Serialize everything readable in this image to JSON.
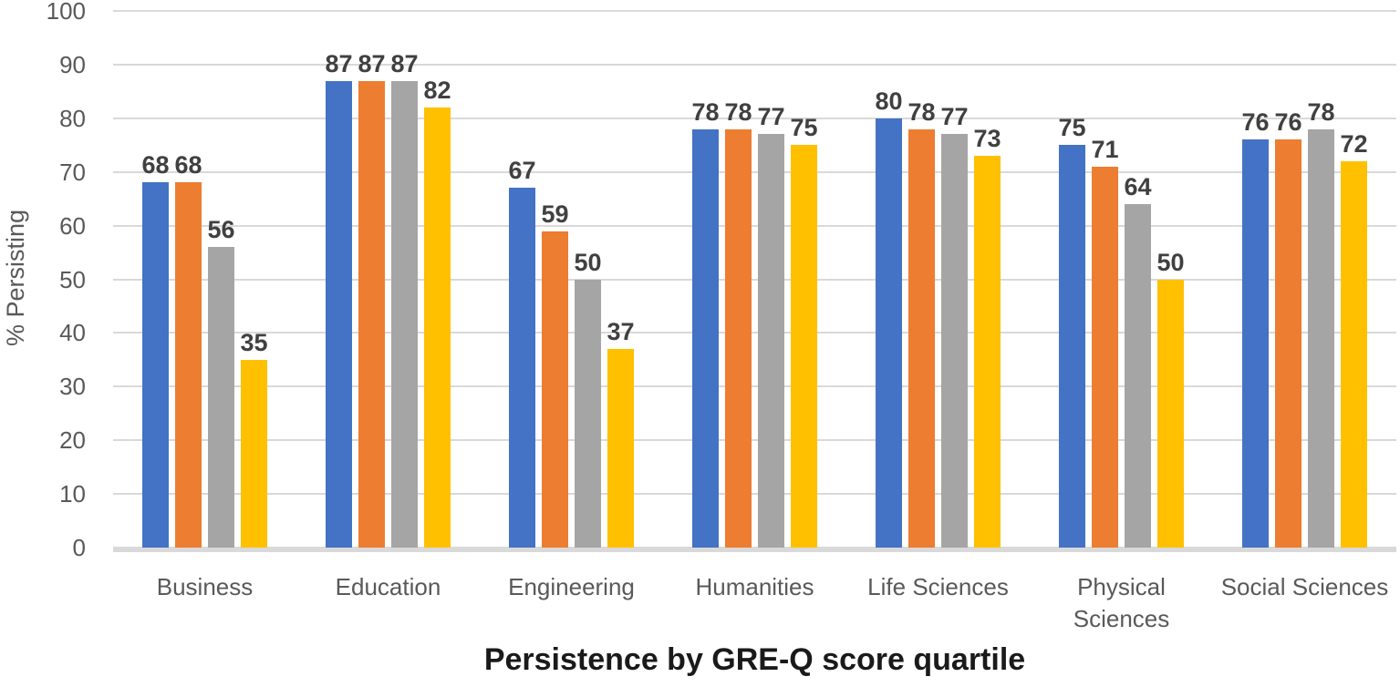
{
  "chart_data": {
    "type": "bar",
    "title": "Persistence by GRE-Q score quartile",
    "ylabel": "% Persisting",
    "xlabel": "",
    "ylim": [
      0,
      100
    ],
    "yticks": [
      100,
      90,
      80,
      70,
      60,
      50,
      40,
      30,
      20,
      10,
      0
    ],
    "grid": true,
    "legend": "none",
    "data_labels": true,
    "categories": [
      "Business",
      "Education",
      "Engineering",
      "Humanities",
      "Life Sciences",
      "Physical Sciences",
      "Social Sciences"
    ],
    "two_line_categories": [
      "Physical Sciences"
    ],
    "series": [
      {
        "name": "quartile-series-blue",
        "color": "#4472C4",
        "values": [
          68,
          87,
          67,
          78,
          80,
          75,
          76
        ]
      },
      {
        "name": "quartile-series-orange",
        "color": "#ED7D31",
        "values": [
          68,
          87,
          59,
          78,
          78,
          71,
          76
        ]
      },
      {
        "name": "quartile-series-gray",
        "color": "#A5A5A5",
        "values": [
          56,
          87,
          50,
          77,
          77,
          64,
          78
        ]
      },
      {
        "name": "quartile-series-yellow",
        "color": "#FFC000",
        "values": [
          35,
          82,
          37,
          75,
          73,
          50,
          72
        ]
      }
    ]
  },
  "colors": {
    "gridline": "#D9D9D9",
    "axis_line": "#D9D9D9",
    "tick_label": "#595959",
    "category_label": "#595959",
    "data_label": "#404040",
    "title": "#1A1A1A"
  }
}
